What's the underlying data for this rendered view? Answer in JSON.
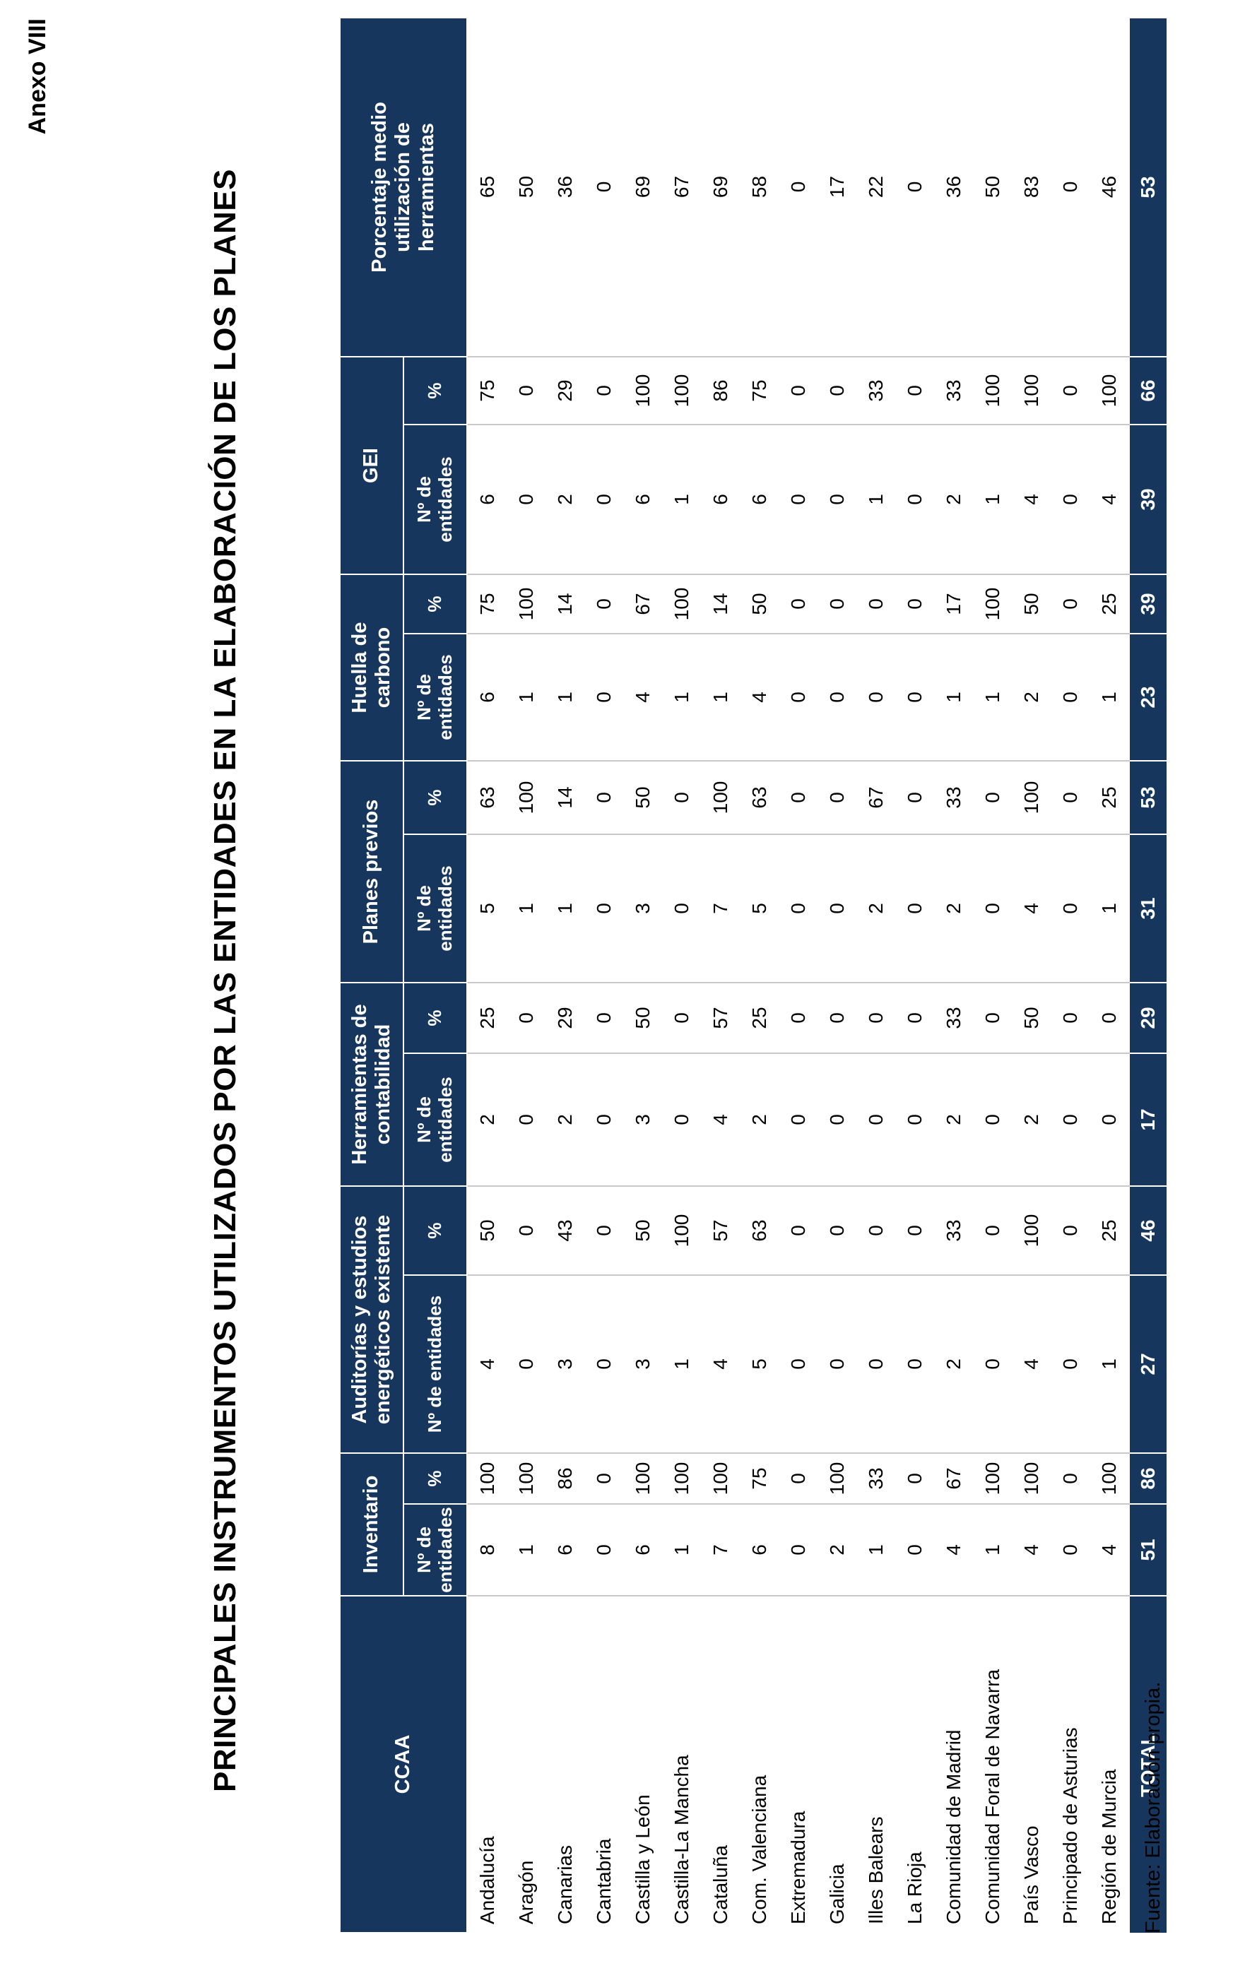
{
  "page": {
    "annex_label": "Anexo VIII",
    "title": "PRINCIPALES INSTRUMENTOS UTILIZADOS POR LAS ENTIDADES EN LA ELABORACIÓN DE LOS PLANES",
    "source_note": "Fuente: Elaboración propia."
  },
  "colors": {
    "navy_header": "#17365d",
    "grid_line": "#c9c9c9",
    "header_text": "#ffffff",
    "body_text": "#000000"
  },
  "table": {
    "ccaa_header": "CCAA",
    "groups": [
      {
        "label": "Inventario",
        "n_label": "Nº de\nentidades",
        "pct_label": "%"
      },
      {
        "label": "Auditorías y estudios\nenergéticos existente",
        "n_label": "Nº de entidades",
        "pct_label": "%"
      },
      {
        "label": "Herramientas de\ncontabilidad",
        "n_label": "Nº de\nentidades",
        "pct_label": "%"
      },
      {
        "label": "Planes previos",
        "n_label": "Nº de\nentidades",
        "pct_label": "%"
      },
      {
        "label": "Huella de\ncarbono",
        "n_label": "Nº de\nentidades",
        "pct_label": "%"
      },
      {
        "label": "GEI",
        "n_label": "Nº de\nentidades",
        "pct_label": "%"
      }
    ],
    "avg_col_label": "Porcentaje medio\nutilización de\nherramientas",
    "value_columns_order": [
      "Inventario Nº de entidades",
      "Inventario %",
      "Auditorías Nº de entidades",
      "Auditorías %",
      "Herramientas Nº de entidades",
      "Herramientas %",
      "Planes previos Nº de entidades",
      "Planes previos %",
      "Huella de carbono Nº de entidades",
      "Huella de carbono %",
      "GEI Nº de entidades",
      "GEI %",
      "Porcentaje medio utilización de herramientas"
    ],
    "rows": [
      {
        "ccaa": "Andalucía",
        "values": [
          8,
          100,
          4,
          50,
          2,
          25,
          5,
          63,
          6,
          75,
          6,
          75,
          65
        ]
      },
      {
        "ccaa": "Aragón",
        "values": [
          1,
          100,
          0,
          0,
          0,
          0,
          1,
          100,
          1,
          100,
          0,
          0,
          50
        ]
      },
      {
        "ccaa": "Canarias",
        "values": [
          6,
          86,
          3,
          43,
          2,
          29,
          1,
          14,
          1,
          14,
          2,
          29,
          36
        ]
      },
      {
        "ccaa": "Cantabria",
        "values": [
          0,
          0,
          0,
          0,
          0,
          0,
          0,
          0,
          0,
          0,
          0,
          0,
          0
        ]
      },
      {
        "ccaa": "Castilla y León",
        "values": [
          6,
          100,
          3,
          50,
          3,
          50,
          3,
          50,
          4,
          67,
          6,
          100,
          69
        ]
      },
      {
        "ccaa": "Castilla-La Mancha",
        "values": [
          1,
          100,
          1,
          100,
          0,
          0,
          0,
          0,
          1,
          100,
          1,
          100,
          67
        ]
      },
      {
        "ccaa": "Cataluña",
        "values": [
          7,
          100,
          4,
          57,
          4,
          57,
          7,
          100,
          1,
          14,
          6,
          86,
          69
        ]
      },
      {
        "ccaa": "Com. Valenciana",
        "values": [
          6,
          75,
          5,
          63,
          2,
          25,
          5,
          63,
          4,
          50,
          6,
          75,
          58
        ]
      },
      {
        "ccaa": "Extremadura",
        "values": [
          0,
          0,
          0,
          0,
          0,
          0,
          0,
          0,
          0,
          0,
          0,
          0,
          0
        ]
      },
      {
        "ccaa": "Galicia",
        "values": [
          2,
          100,
          0,
          0,
          0,
          0,
          0,
          0,
          0,
          0,
          0,
          0,
          17
        ]
      },
      {
        "ccaa": "Illes Balears",
        "values": [
          1,
          33,
          0,
          0,
          0,
          0,
          2,
          67,
          0,
          0,
          1,
          33,
          22
        ]
      },
      {
        "ccaa": "La Rioja",
        "values": [
          0,
          0,
          0,
          0,
          0,
          0,
          0,
          0,
          0,
          0,
          0,
          0,
          0
        ]
      },
      {
        "ccaa": "Comunidad de Madrid",
        "values": [
          4,
          67,
          2,
          33,
          2,
          33,
          2,
          33,
          1,
          17,
          2,
          33,
          36
        ]
      },
      {
        "ccaa": "Comunidad Foral de Navarra",
        "values": [
          1,
          100,
          0,
          0,
          0,
          0,
          0,
          0,
          1,
          100,
          1,
          100,
          50
        ]
      },
      {
        "ccaa": "País Vasco",
        "values": [
          4,
          100,
          4,
          100,
          2,
          50,
          4,
          100,
          2,
          50,
          4,
          100,
          83
        ]
      },
      {
        "ccaa": "Principado de Asturias",
        "values": [
          0,
          0,
          0,
          0,
          0,
          0,
          0,
          0,
          0,
          0,
          0,
          0,
          0
        ]
      },
      {
        "ccaa": "Región de Murcia",
        "values": [
          4,
          100,
          1,
          25,
          0,
          0,
          1,
          25,
          1,
          25,
          4,
          100,
          46
        ]
      }
    ],
    "total_row": {
      "label": "TOTAL",
      "values": [
        51,
        86,
        27,
        46,
        17,
        29,
        31,
        53,
        23,
        39,
        39,
        66,
        53
      ]
    }
  }
}
